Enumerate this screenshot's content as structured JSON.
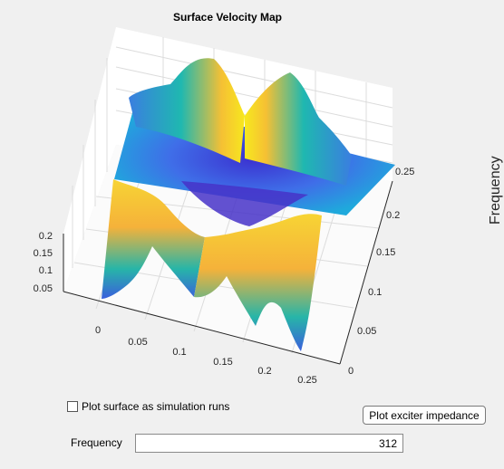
{
  "plot": {
    "title": "Surface Velocity Map",
    "side_axis_label": "Frequency",
    "colormap": "parula",
    "x_ticks": [
      "0",
      "0.05",
      "0.1",
      "0.15",
      "0.2",
      "0.25"
    ],
    "y_ticks": [
      "0",
      "0.05",
      "0.1",
      "0.15",
      "0.2",
      "0.25"
    ],
    "z_ticks": [
      "0.05",
      "0.1",
      "0.15",
      "0.2"
    ],
    "x_range": [
      0,
      0.27
    ],
    "y_range": [
      0,
      0.27
    ],
    "grid": true
  },
  "controls": {
    "checkbox_label": "Plot surface as simulation runs",
    "checkbox_checked": false,
    "button_label": "Plot exciter impedance",
    "frequency_label": "Frequency",
    "frequency_value": "312"
  }
}
